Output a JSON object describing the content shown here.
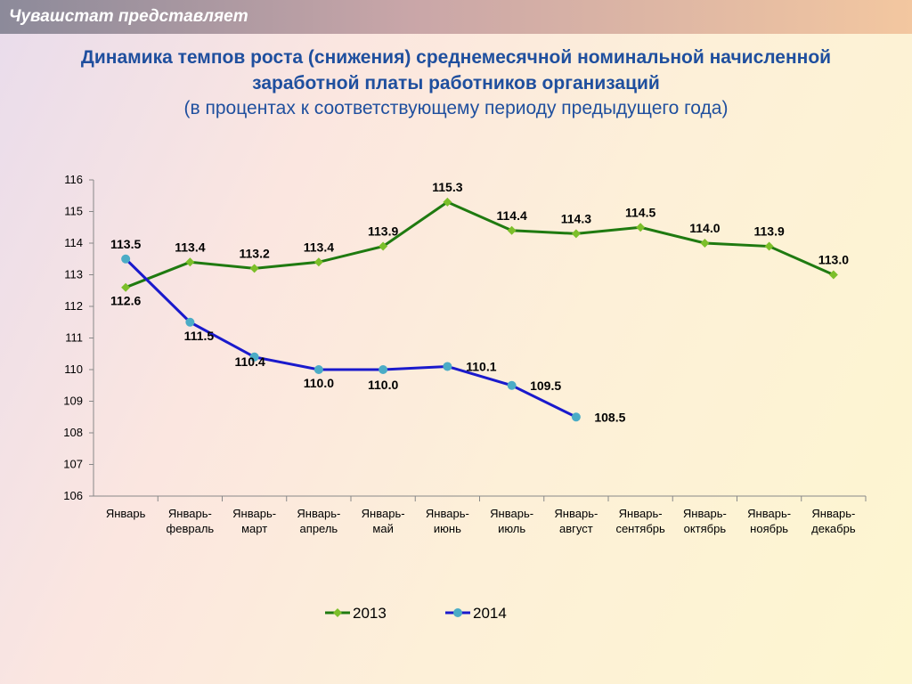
{
  "header": "Чувашстат представляет",
  "chart_data": {
    "type": "line",
    "title": "Динамика темпов роста (снижения) среднемесячной номинальной начисленной заработной платы работников организаций",
    "subtitle": "(в процентах к соответствующему периоду предыдущего года)",
    "categories": [
      "Январь",
      "Январь-февраль",
      "Январь-март",
      "Январь-апрель",
      "Январь-май",
      "Январь-июнь",
      "Январь-июль",
      "Январь-август",
      "Январь-сентябрь",
      "Январь-октябрь",
      "Январь-ноябрь",
      "Январь-декабрь"
    ],
    "series": [
      {
        "name": "2013",
        "color": "#1f7a10",
        "marker": "diamond",
        "marker_color": "#7cbf2a",
        "values": [
          112.6,
          113.4,
          113.2,
          113.4,
          113.9,
          115.3,
          114.4,
          114.3,
          114.5,
          114.0,
          113.9,
          113.0
        ],
        "value_labels": [
          "112.6",
          "113.4",
          "113.2",
          "113.4",
          "113.9",
          "115.3",
          "114.4",
          "114.3",
          "114.5",
          "114.0",
          "113.9",
          "113.0"
        ]
      },
      {
        "name": "2014",
        "color": "#1a1acc",
        "marker": "circle",
        "marker_color": "#4bacc6",
        "values": [
          113.5,
          111.5,
          110.4,
          110.0,
          110.0,
          110.1,
          109.5,
          108.5,
          null,
          null,
          null,
          null
        ],
        "value_labels": [
          "113.5",
          "111.5",
          "110.4",
          "110.0",
          "110.0",
          "110.1",
          "109.5",
          "108.5",
          null,
          null,
          null,
          null
        ]
      }
    ],
    "ylim": [
      106,
      116
    ],
    "yticks": [
      106,
      107,
      108,
      109,
      110,
      111,
      112,
      113,
      114,
      115,
      116
    ],
    "legend": "bottom"
  }
}
